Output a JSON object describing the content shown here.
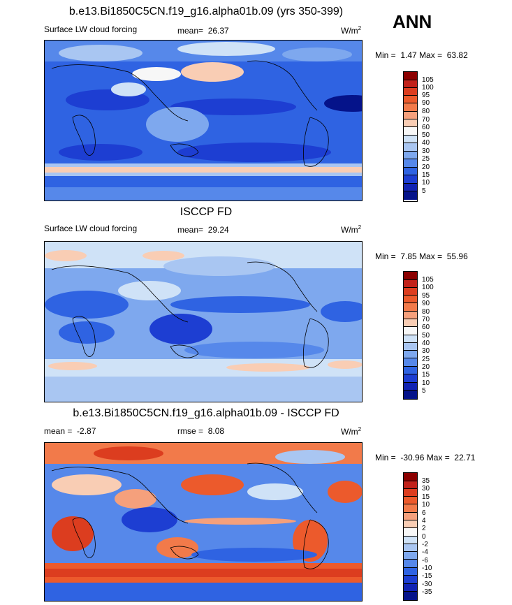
{
  "season": "ANN",
  "panels": [
    {
      "title": "b.e13.Bi1850C5CN.f19_g16.alpha01b.09 (yrs 350-399)",
      "left_label": "Surface LW cloud forcing",
      "mean_label": "mean=",
      "mean_value": "26.37",
      "units": "W/m",
      "units_exp": "2",
      "min_label": "Min =",
      "min_value": "1.47",
      "max_label": "Max =",
      "max_value": "63.82",
      "levels": [
        "105",
        "100",
        "95",
        "90",
        "80",
        "70",
        "60",
        "50",
        "40",
        "30",
        "25",
        "20",
        "15",
        "10",
        "5"
      ],
      "colors": [
        "#8b0000",
        "#c1211a",
        "#dc3d1f",
        "#ec5a2c",
        "#f27a4a",
        "#f5a07c",
        "#f9cdb4",
        "#f7f7f7",
        "#cfe2f7",
        "#a9c6f2",
        "#7ea8ee",
        "#5688ea",
        "#2f63e2",
        "#1d3ed2",
        "#1123b3",
        "#05138a"
      ]
    },
    {
      "title": "ISCCP FD",
      "left_label": "Surface LW cloud forcing",
      "mean_label": "mean=",
      "mean_value": "29.24",
      "units": "W/m",
      "units_exp": "2",
      "min_label": "Min =",
      "min_value": "7.85",
      "max_label": "Max =",
      "max_value": "55.96",
      "levels": [
        "105",
        "100",
        "95",
        "90",
        "80",
        "70",
        "60",
        "50",
        "40",
        "30",
        "25",
        "20",
        "15",
        "10",
        "5"
      ],
      "colors": [
        "#8b0000",
        "#c1211a",
        "#dc3d1f",
        "#ec5a2c",
        "#f27a4a",
        "#f5a07c",
        "#f9cdb4",
        "#f7f7f7",
        "#cfe2f7",
        "#a9c6f2",
        "#7ea8ee",
        "#5688ea",
        "#2f63e2",
        "#1d3ed2",
        "#1123b3",
        "#05138a"
      ]
    },
    {
      "title": "b.e13.Bi1850C5CN.f19_g16.alpha01b.09 - ISCCP FD",
      "left_label": "mean =",
      "left_value": "-2.87",
      "rmse_label": "rmse =",
      "rmse_value": "8.08",
      "units": "W/m",
      "units_exp": "2",
      "min_label": "Min =",
      "min_value": "-30.96",
      "max_label": "Max =",
      "max_value": "22.71",
      "levels": [
        "35",
        "30",
        "15",
        "10",
        "6",
        "4",
        "2",
        "0",
        "-2",
        "-4",
        "-6",
        "-10",
        "-15",
        "-30",
        "-35"
      ],
      "colors": [
        "#8b0000",
        "#c1211a",
        "#dc3d1f",
        "#ec5a2c",
        "#f27a4a",
        "#f5a07c",
        "#f9cdb4",
        "#f7f7f7",
        "#cfe2f7",
        "#a9c6f2",
        "#7ea8ee",
        "#5688ea",
        "#2f63e2",
        "#1d3ed2",
        "#1123b3",
        "#05138a"
      ]
    }
  ]
}
